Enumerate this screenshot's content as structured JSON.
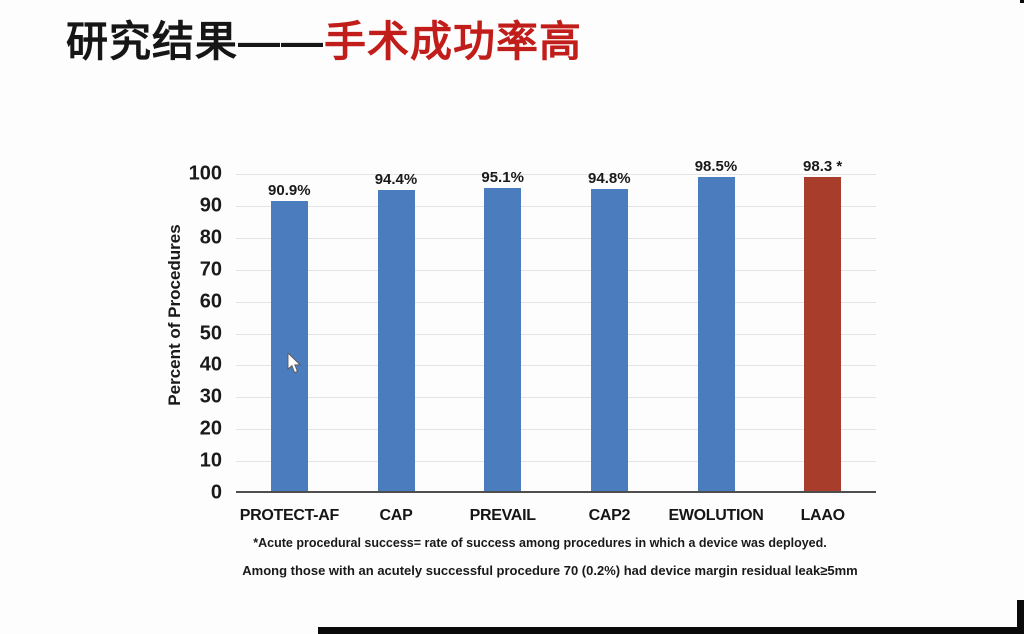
{
  "title": {
    "black_part": "研究结果——",
    "red_part": "手术成功率高",
    "red_color": "#c11d1b"
  },
  "chart_data": {
    "type": "bar",
    "title": "",
    "categories": [
      "PROTECT-AF",
      "CAP",
      "PREVAIL",
      "CAP2",
      "EWOLUTION",
      "LAAO"
    ],
    "values": [
      90.9,
      94.4,
      95.1,
      94.8,
      98.5,
      98.3
    ],
    "bar_labels": [
      "90.9%",
      "94.4%",
      "95.1%",
      "94.8%",
      "98.5%",
      "98.3 *"
    ],
    "bar_colors": [
      "#4a7cbe",
      "#4a7cbe",
      "#4a7cbe",
      "#4a7cbe",
      "#4a7cbe",
      "#a73d2a"
    ],
    "xlabel": "",
    "ylabel": "Percent of Procedures",
    "ylim": [
      0,
      100
    ],
    "yticks": [
      0,
      10,
      20,
      30,
      40,
      50,
      60,
      70,
      80,
      90,
      100
    ],
    "grid": true,
    "legend": false
  },
  "footnotes": [
    "*Acute procedural success= rate of success among procedures in which a device was deployed.",
    "Among those with an acutely successful procedure 70 (0.2%) had device margin residual leak≥5mm"
  ],
  "cursor": "arrow-pointer"
}
